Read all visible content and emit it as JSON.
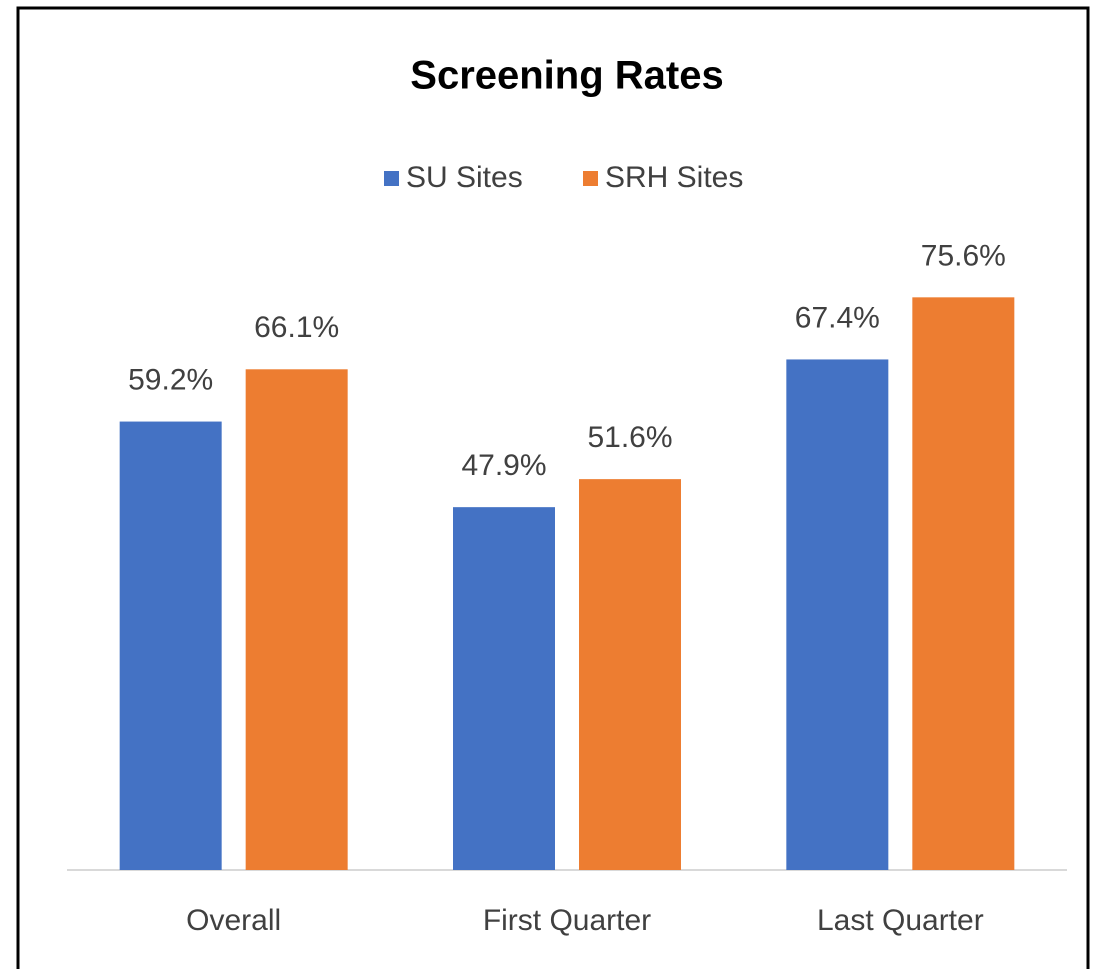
{
  "chart_data": {
    "type": "bar",
    "title": "Screening Rates",
    "categories": [
      "Overall",
      "First Quarter",
      "Last Quarter"
    ],
    "series": [
      {
        "name": "SU Sites",
        "color": "#4472c4",
        "values": [
          59.2,
          47.9,
          67.4
        ],
        "value_labels": [
          "59.2%",
          "47.9%",
          "67.4%"
        ]
      },
      {
        "name": "SRH Sites",
        "color": "#ed7d31",
        "values": [
          66.1,
          51.6,
          75.6
        ],
        "value_labels": [
          "66.1%",
          "51.6%",
          "75.6%"
        ]
      }
    ],
    "legend": "top"
  }
}
